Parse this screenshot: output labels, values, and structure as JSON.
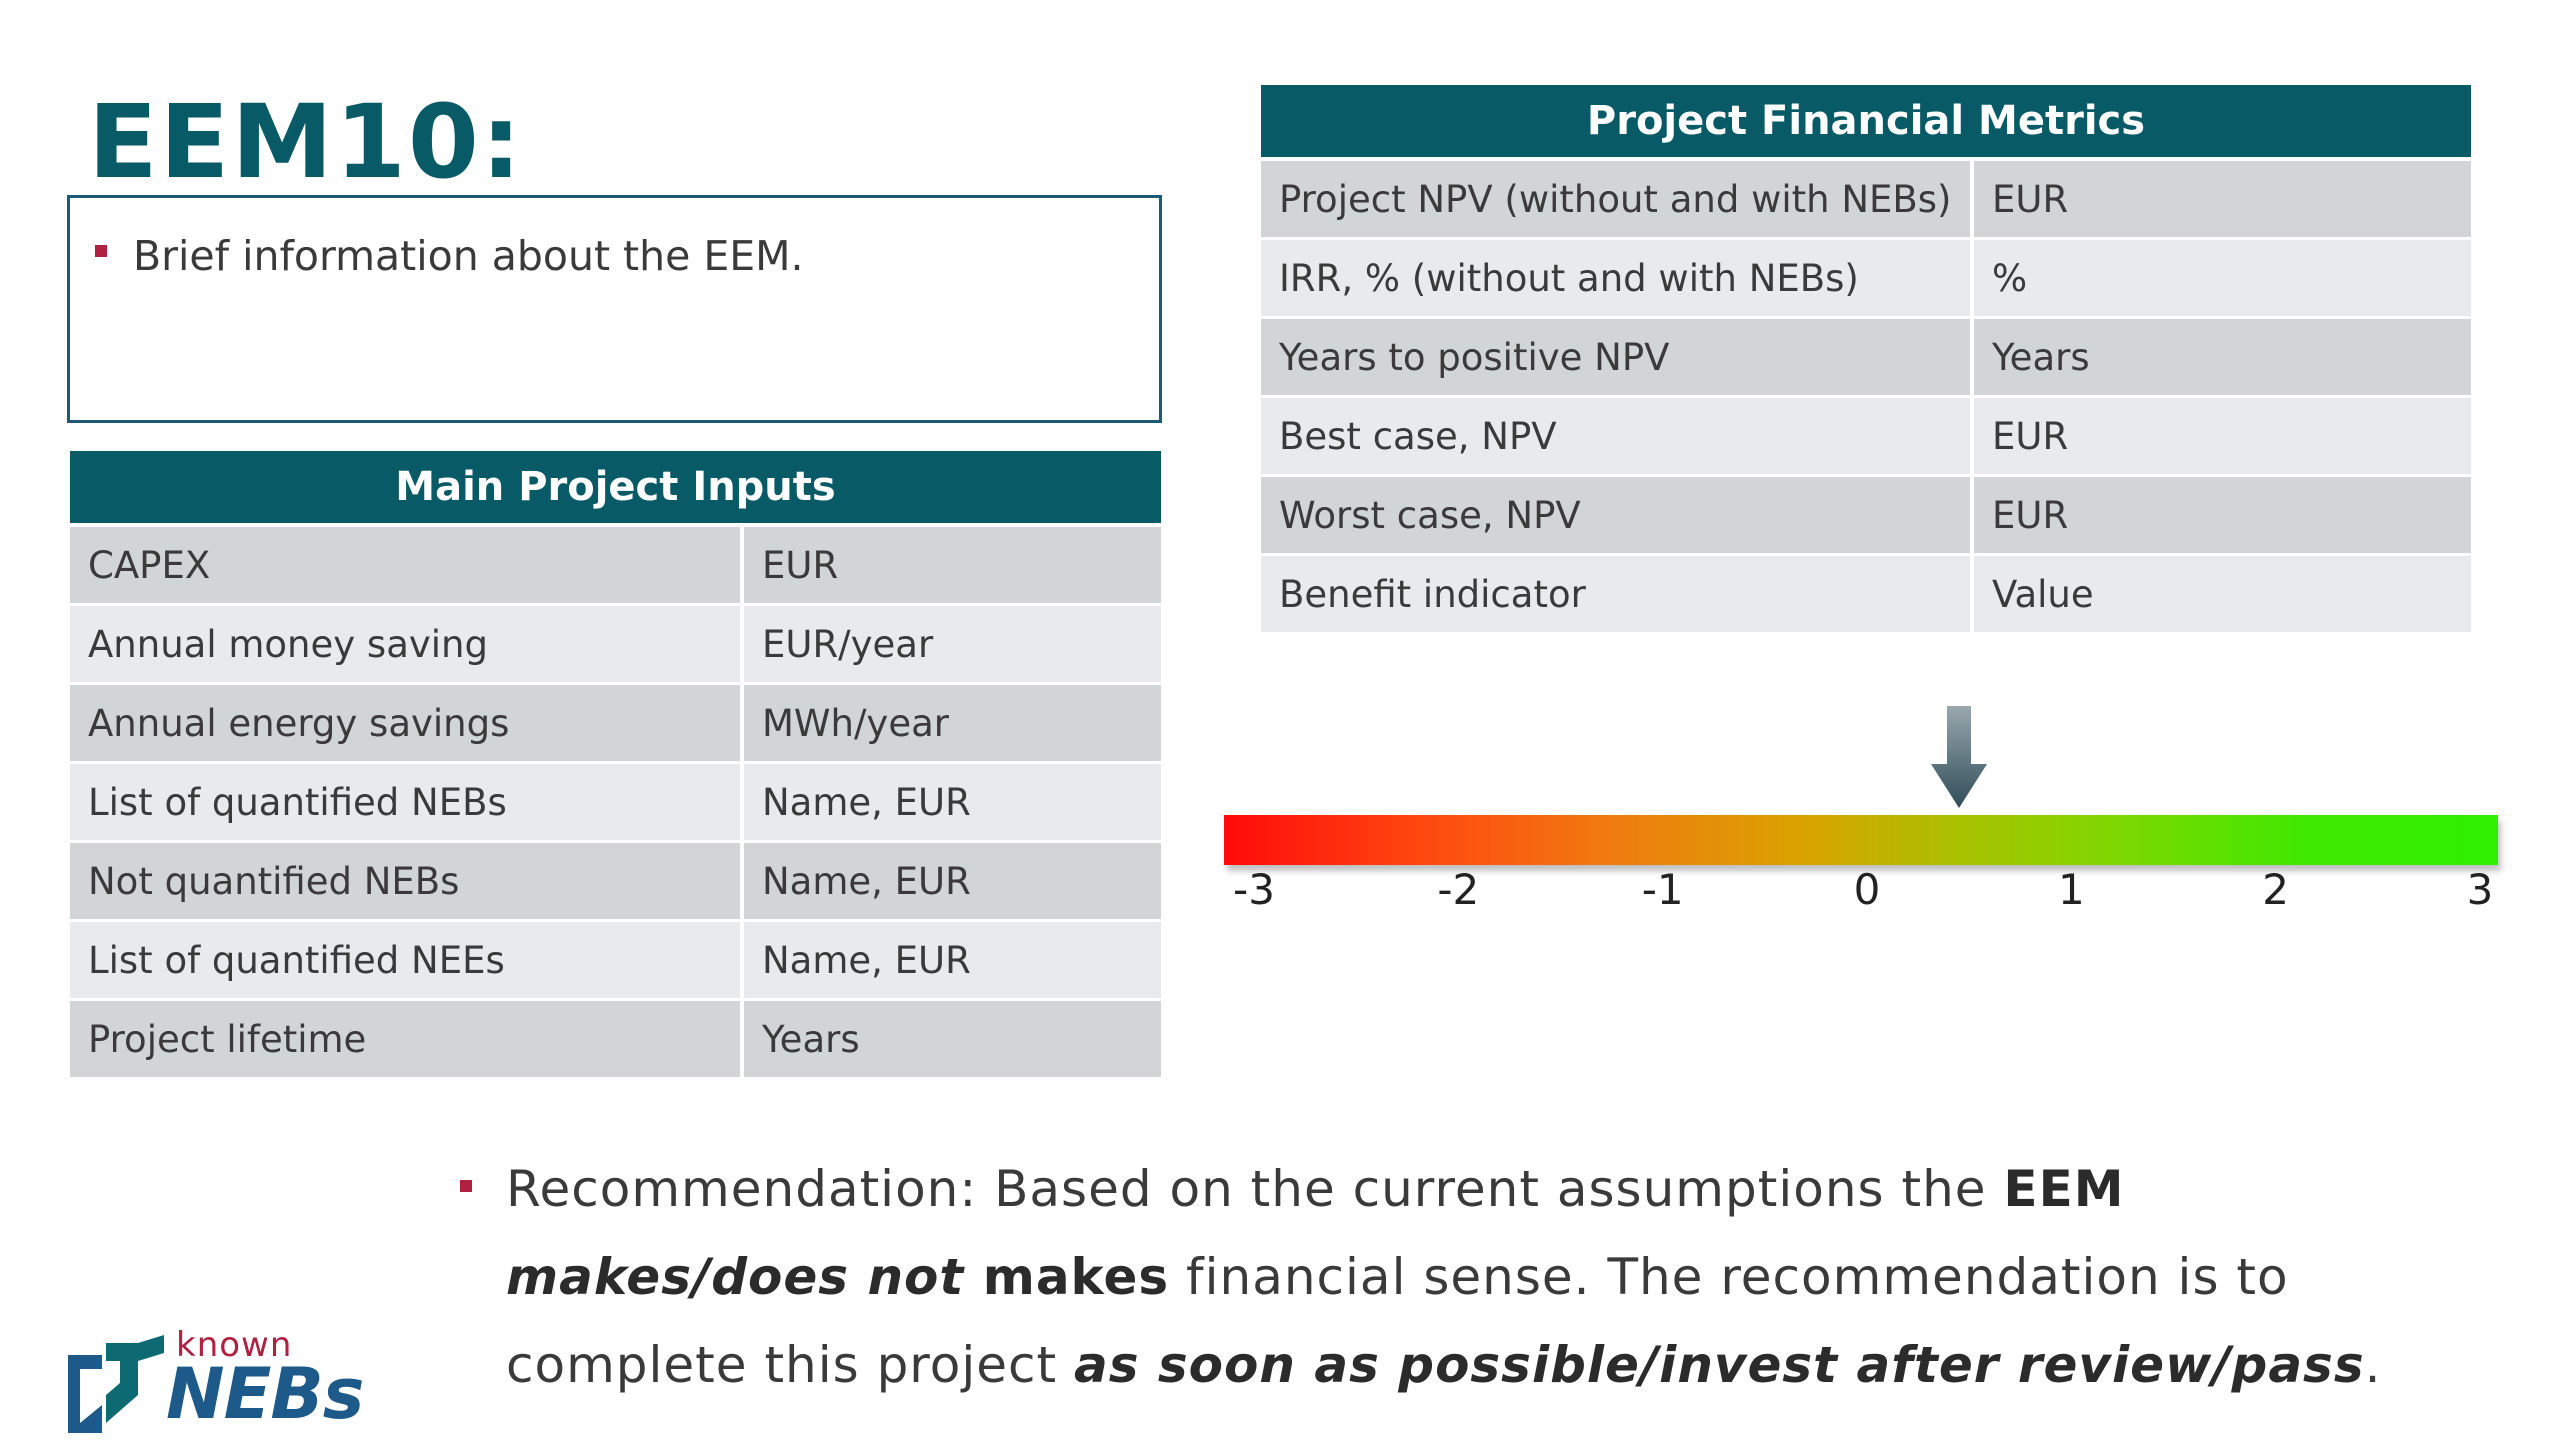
{
  "title": "EEM10:",
  "info": {
    "bullet": "Brief information about the EEM."
  },
  "inputs": {
    "header": "Main Project Inputs",
    "rows": [
      {
        "label": "CAPEX",
        "unit": "EUR"
      },
      {
        "label": "Annual money saving",
        "unit": "EUR/year"
      },
      {
        "label": "Annual energy savings",
        "unit": "MWh/year"
      },
      {
        "label": "List of quantified NEBs",
        "unit": "Name, EUR"
      },
      {
        "label": "Not quantified NEBs",
        "unit": "Name, EUR"
      },
      {
        "label": "List of quantified NEEs",
        "unit": "Name, EUR"
      },
      {
        "label": "Project lifetime",
        "unit": "Years"
      }
    ]
  },
  "metrics": {
    "header": "Project Financial Metrics",
    "rows": [
      {
        "label": "Project NPV (without and with NEBs)",
        "unit": "EUR"
      },
      {
        "label": "IRR, % (without and with NEBs)",
        "unit": "%"
      },
      {
        "label": "Years to positive NPV",
        "unit": "Years"
      },
      {
        "label": "Best case, NPV",
        "unit": "EUR"
      },
      {
        "label": "Worst case, NPV",
        "unit": "EUR"
      },
      {
        "label": "Benefit indicator",
        "unit": "Value"
      }
    ]
  },
  "scale": {
    "ticks": [
      "-3",
      "-2",
      "-1",
      "0",
      "1",
      "2",
      "3"
    ],
    "min": -3,
    "max": 3,
    "indicator_value": 0.45,
    "colors": {
      "low": "#ff0a0a",
      "mid": "#d8a400",
      "high": "#2ef000",
      "arrow": "#3e5a66"
    }
  },
  "recommendation": {
    "t1": "Recommendation: Based on the current assumptions the ",
    "b1": "EEM ",
    "bi1": "makes/does not",
    "b2": " makes",
    "t2": " financial sense. The recommendation is to complete this project ",
    "bi2": "as soon as possible/invest after review/pass",
    "t3": "."
  },
  "logo": {
    "small": "known",
    "big": "NEBs"
  },
  "colors": {
    "brand_teal": "#075a66",
    "bullet_red": "#b02040",
    "row_dark": "#d1d5d6",
    "row_light": "#e8eaeb"
  }
}
